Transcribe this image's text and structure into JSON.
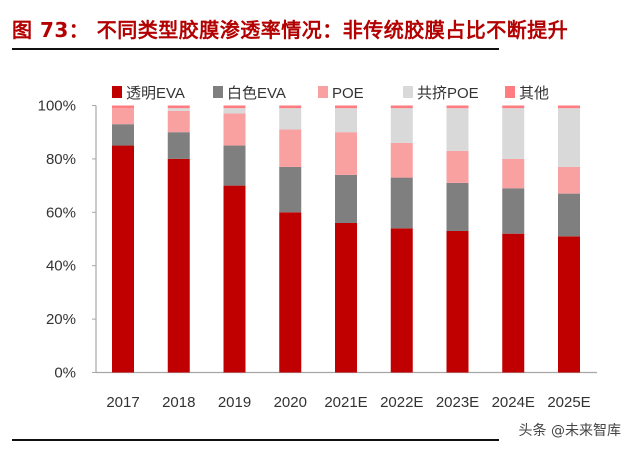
{
  "title": "图 73：  不同类型胶膜渗透率情况：非传统胶膜占比不断提升",
  "watermark": "头条 @未来智库",
  "chart_data": {
    "type": "bar",
    "stacked": true,
    "categories": [
      "2017",
      "2018",
      "2019",
      "2020",
      "2021E",
      "2022E",
      "2023E",
      "2024E",
      "2025E"
    ],
    "series": [
      {
        "name": "透明EVA",
        "color": "#c00000",
        "values": [
          85,
          80,
          70,
          60,
          56,
          54,
          53,
          52,
          51
        ]
      },
      {
        "name": "白色EVA",
        "color": "#7f7f7f",
        "values": [
          8,
          10,
          15,
          17,
          18,
          19,
          18,
          17,
          16
        ]
      },
      {
        "name": "POE",
        "color": "#f9a0a0",
        "values": [
          6,
          8,
          12,
          14,
          16,
          13,
          12,
          11,
          10
        ]
      },
      {
        "name": "共挤POE",
        "color": "#d9d9d9",
        "values": [
          0,
          1,
          2,
          8,
          9,
          13,
          16,
          19,
          22
        ]
      },
      {
        "name": "其他",
        "color": "#ff7c80",
        "values": [
          1,
          1,
          1,
          1,
          1,
          1,
          1,
          1,
          1
        ]
      }
    ],
    "yticks": [
      "0%",
      "20%",
      "40%",
      "60%",
      "80%",
      "100%"
    ],
    "ylim": [
      0,
      100
    ],
    "legend": "top",
    "grid": false
  }
}
